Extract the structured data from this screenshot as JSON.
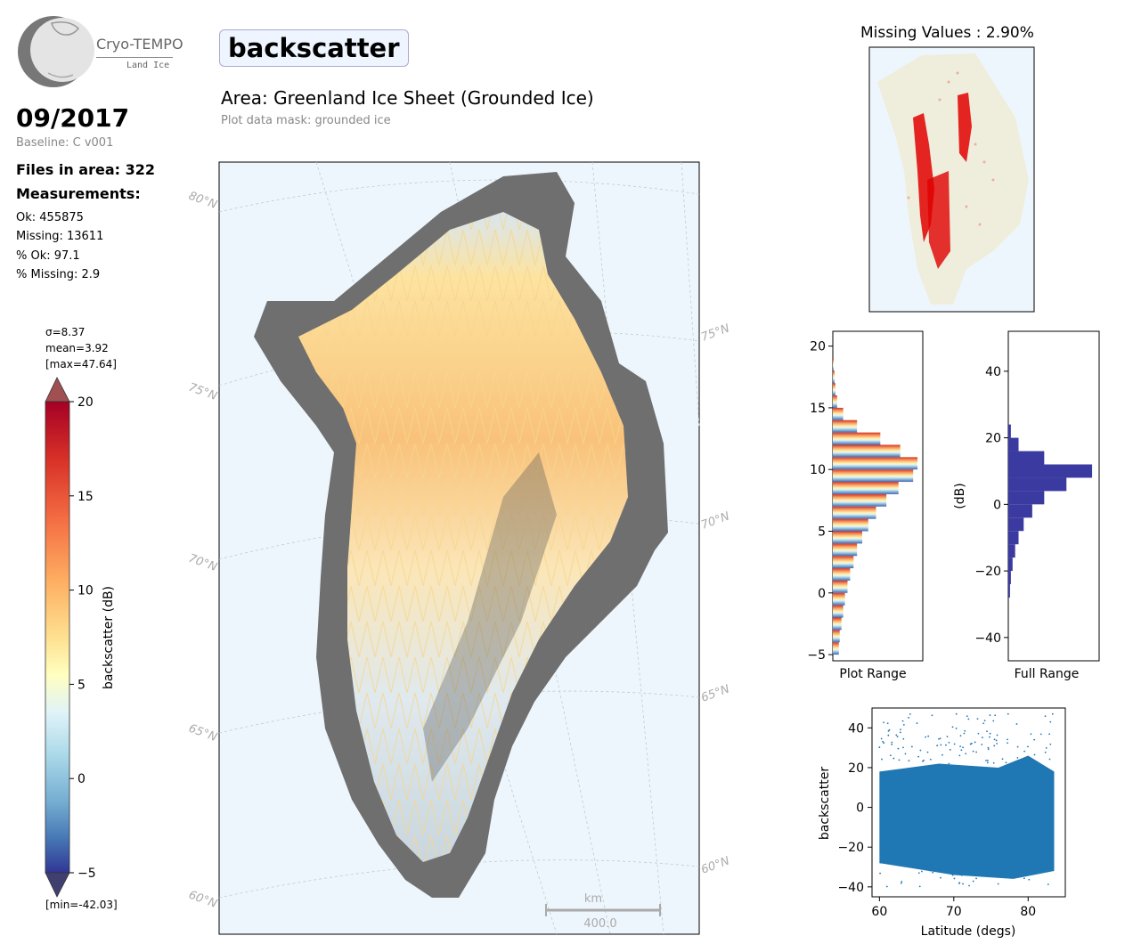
{
  "header": {
    "logo_name": "Cryo-TEMPO",
    "logo_sub": "Land Ice",
    "parameter": "backscatter",
    "area_title": "Area: Greenland Ice Sheet (Grounded Ice)",
    "mask_note": "Plot data mask: grounded ice"
  },
  "info": {
    "date": "09/2017",
    "baseline": "Baseline: C v001",
    "files": "Files in area: 322",
    "measurements_label": "Measurements:",
    "ok": "Ok: 455875",
    "missing": "Missing: 13611",
    "pct_ok": "% Ok: 97.1",
    "pct_missing": "% Missing: 2.9"
  },
  "colorbar": {
    "sigma": "σ=8.37",
    "mean": "mean=3.92",
    "max": "[max=47.64]",
    "min": "[min=-42.03]",
    "label": "backscatter (dB)",
    "ticks": [
      "20",
      "15",
      "10",
      "5",
      "0",
      "−5"
    ],
    "range": [
      -5,
      20
    ]
  },
  "map": {
    "lat_labels_left": [
      "80°N",
      "75°N",
      "70°N",
      "65°N",
      "60°N"
    ],
    "lat_labels_right": [
      "75°N",
      "70°N",
      "65°N",
      "60°N"
    ],
    "scalebar_unit": "km",
    "scalebar_value": "400.0"
  },
  "missing_panel": {
    "title": "Missing Values : 2.90%"
  },
  "colors": {
    "ocean": "#eef6fd",
    "hist_full": "#3a3aa0",
    "scatter": "#1f77b4",
    "missing_dots": "#e00000"
  },
  "chart_data": [
    {
      "type": "bar",
      "name_label": "Plot Range",
      "orientation": "horizontal",
      "ylim": [
        -5.5,
        21.2
      ],
      "yticks": [
        "20",
        "15",
        "10",
        "5",
        "0",
        "−5"
      ],
      "bins": [
        -5,
        -4,
        -3,
        -2,
        -1,
        0,
        1,
        2,
        3,
        4,
        5,
        6,
        7,
        8,
        9,
        10,
        11,
        12,
        13,
        14,
        15,
        16,
        17,
        18
      ],
      "counts": [
        0.07,
        0.08,
        0.1,
        0.12,
        0.14,
        0.17,
        0.2,
        0.24,
        0.28,
        0.34,
        0.41,
        0.5,
        0.62,
        0.76,
        0.93,
        0.98,
        0.78,
        0.55,
        0.28,
        0.12,
        0.05,
        0.03,
        0.02,
        0.01
      ]
    },
    {
      "type": "bar",
      "name_label": "Full Range",
      "orientation": "horizontal",
      "ylabel": "(dB)",
      "ylim": [
        -47,
        52
      ],
      "yticks": [
        "40",
        "20",
        "0",
        "−20",
        "−40"
      ],
      "bins": [
        -28,
        -24,
        -20,
        -16,
        -12,
        -8,
        -4,
        0,
        4,
        8,
        12,
        16,
        20
      ],
      "counts": [
        0.02,
        0.03,
        0.05,
        0.08,
        0.12,
        0.18,
        0.28,
        0.42,
        0.68,
        0.98,
        0.42,
        0.12,
        0.03
      ]
    },
    {
      "type": "scatter",
      "xlabel": "Latitude (degs)",
      "ylabel": "backscatter",
      "xlim": [
        59,
        85
      ],
      "ylim": [
        -45,
        50
      ],
      "xticks": [
        "60",
        "70",
        "80"
      ],
      "yticks": [
        "40",
        "20",
        "0",
        "−20",
        "−40"
      ]
    }
  ]
}
